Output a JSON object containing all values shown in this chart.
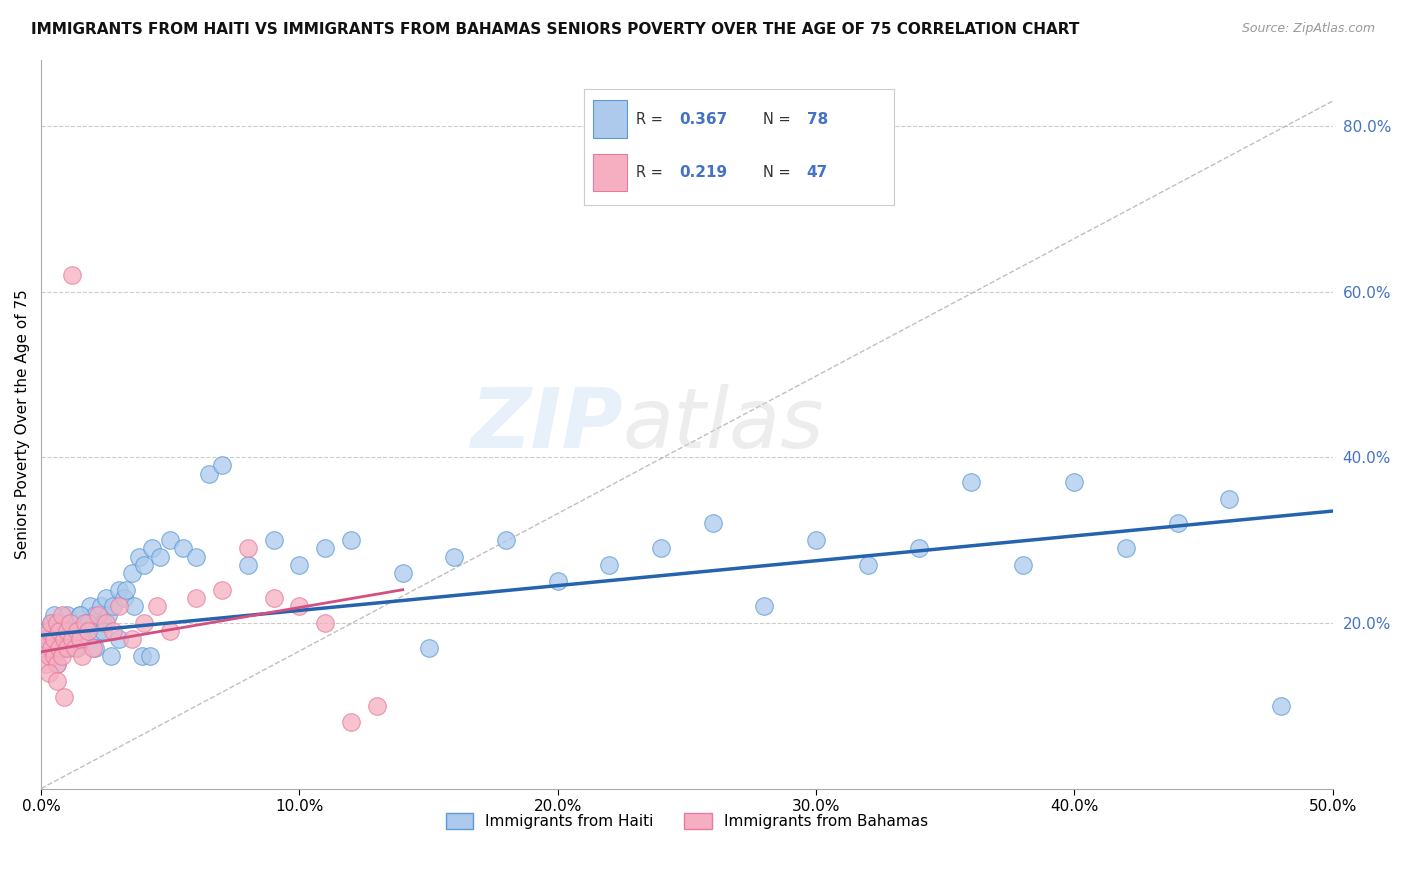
{
  "title": "IMMIGRANTS FROM HAITI VS IMMIGRANTS FROM BAHAMAS SENIORS POVERTY OVER THE AGE OF 75 CORRELATION CHART",
  "source": "Source: ZipAtlas.com",
  "ylabel": "Seniors Poverty Over the Age of 75",
  "legend_haiti": "Immigrants from Haiti",
  "legend_bahamas": "Immigrants from Bahamas",
  "r_haiti": 0.367,
  "n_haiti": 78,
  "r_bahamas": 0.219,
  "n_bahamas": 47,
  "xlim": [
    0.0,
    0.5
  ],
  "ylim": [
    0.0,
    0.88
  ],
  "yticks_right": [
    0.2,
    0.4,
    0.6,
    0.8
  ],
  "color_haiti": "#adc9eb",
  "color_bahamas": "#f5afc0",
  "edge_haiti": "#5b9bd5",
  "edge_bahamas": "#e879a0",
  "line_haiti": "#2563ae",
  "line_bahamas": "#d45080",
  "haiti_x": [
    0.002,
    0.003,
    0.004,
    0.005,
    0.005,
    0.006,
    0.007,
    0.008,
    0.009,
    0.01,
    0.01,
    0.011,
    0.012,
    0.013,
    0.014,
    0.015,
    0.016,
    0.017,
    0.018,
    0.019,
    0.02,
    0.021,
    0.022,
    0.023,
    0.024,
    0.025,
    0.026,
    0.028,
    0.03,
    0.032,
    0.035,
    0.038,
    0.04,
    0.043,
    0.046,
    0.05,
    0.055,
    0.06,
    0.065,
    0.07,
    0.08,
    0.09,
    0.1,
    0.11,
    0.12,
    0.14,
    0.16,
    0.18,
    0.2,
    0.22,
    0.24,
    0.26,
    0.28,
    0.3,
    0.32,
    0.34,
    0.36,
    0.38,
    0.4,
    0.42,
    0.44,
    0.46,
    0.003,
    0.006,
    0.009,
    0.012,
    0.015,
    0.018,
    0.021,
    0.024,
    0.027,
    0.03,
    0.033,
    0.036,
    0.039,
    0.042,
    0.15,
    0.48
  ],
  "haiti_y": [
    0.19,
    0.18,
    0.2,
    0.17,
    0.21,
    0.19,
    0.18,
    0.2,
    0.17,
    0.19,
    0.21,
    0.18,
    0.2,
    0.19,
    0.17,
    0.21,
    0.18,
    0.2,
    0.19,
    0.22,
    0.2,
    0.21,
    0.19,
    0.22,
    0.2,
    0.23,
    0.21,
    0.22,
    0.24,
    0.23,
    0.26,
    0.28,
    0.27,
    0.29,
    0.28,
    0.3,
    0.29,
    0.28,
    0.38,
    0.39,
    0.27,
    0.3,
    0.27,
    0.29,
    0.3,
    0.26,
    0.28,
    0.3,
    0.25,
    0.27,
    0.29,
    0.32,
    0.22,
    0.3,
    0.27,
    0.29,
    0.37,
    0.27,
    0.37,
    0.29,
    0.32,
    0.35,
    0.17,
    0.15,
    0.17,
    0.18,
    0.21,
    0.2,
    0.17,
    0.19,
    0.16,
    0.18,
    0.24,
    0.22,
    0.16,
    0.16,
    0.17,
    0.1
  ],
  "bahamas_x": [
    0.001,
    0.002,
    0.002,
    0.003,
    0.003,
    0.004,
    0.004,
    0.005,
    0.005,
    0.006,
    0.006,
    0.007,
    0.007,
    0.008,
    0.008,
    0.009,
    0.01,
    0.01,
    0.011,
    0.012,
    0.012,
    0.013,
    0.014,
    0.015,
    0.016,
    0.017,
    0.018,
    0.02,
    0.022,
    0.025,
    0.028,
    0.03,
    0.035,
    0.04,
    0.045,
    0.05,
    0.06,
    0.07,
    0.08,
    0.09,
    0.1,
    0.11,
    0.12,
    0.13,
    0.003,
    0.006,
    0.009
  ],
  "bahamas_y": [
    0.17,
    0.15,
    0.18,
    0.16,
    0.19,
    0.17,
    0.2,
    0.16,
    0.18,
    0.15,
    0.2,
    0.17,
    0.19,
    0.16,
    0.21,
    0.18,
    0.19,
    0.17,
    0.2,
    0.18,
    0.62,
    0.17,
    0.19,
    0.18,
    0.16,
    0.2,
    0.19,
    0.17,
    0.21,
    0.2,
    0.19,
    0.22,
    0.18,
    0.2,
    0.22,
    0.19,
    0.23,
    0.24,
    0.29,
    0.23,
    0.22,
    0.2,
    0.08,
    0.1,
    0.14,
    0.13,
    0.11
  ],
  "haiti_trend": [
    0.185,
    0.335
  ],
  "bahamas_trend": [
    0.165,
    0.24
  ],
  "bahamas_trend_xlim": [
    0.0,
    0.14
  ],
  "ref_line": [
    [
      0.0,
      0.0
    ],
    [
      0.5,
      0.83
    ]
  ]
}
